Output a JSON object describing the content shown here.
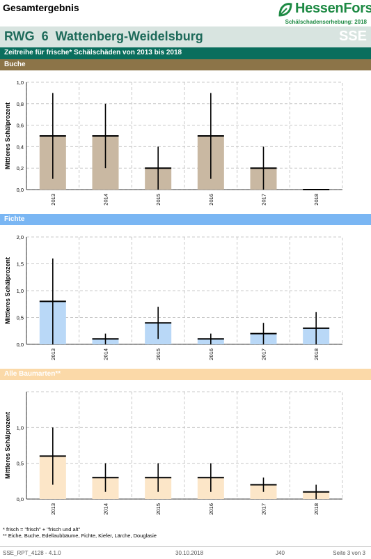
{
  "header": {
    "title": "Gesamtergebnis",
    "logo_text": "HessenForst",
    "logo_icon": "hessenforst-leaf-icon",
    "survey": "Schälschadenserhebung: 2018"
  },
  "region": {
    "title": "RWG  6  Wattenberg-Weidelsburg",
    "badge": "SSE"
  },
  "subtitle": "Zeitreihe für frische* Schälschäden von 2013 bis 2018",
  "colors": {
    "green": "#1e8a44",
    "teal_bar": "#0a6e5d",
    "buche_section": "#8c7448",
    "buche_bar": "#c9b8a2",
    "fichte_section": "#7ab6f3",
    "fichte_bar": "#b9d8f7",
    "alle_section": "#fbd9a8",
    "alle_bar": "#fce6c8"
  },
  "sections": [
    {
      "label": "Buche"
    },
    {
      "label": "Fichte"
    },
    {
      "label": "Alle Baumarten**"
    }
  ],
  "chart_data": [
    {
      "type": "bar",
      "ylabel": "Mittleres Schälprozent",
      "categories": [
        "2013",
        "2014",
        "2015",
        "2016",
        "2017",
        "2018"
      ],
      "values": [
        0.5,
        0.5,
        0.2,
        0.5,
        0.2,
        0.0
      ],
      "error_low": [
        0.1,
        0.2,
        0.0,
        0.1,
        0.0,
        0.0
      ],
      "error_high": [
        0.9,
        0.8,
        0.4,
        0.9,
        0.4,
        0.0
      ],
      "ylim": [
        0,
        1.0
      ],
      "yticks": [
        "0,0",
        "0,2",
        "0,4",
        "0,6",
        "0,8",
        "1,0"
      ],
      "ytick_values": [
        0,
        0.2,
        0.4,
        0.6,
        0.8,
        1.0
      ],
      "grid": true
    },
    {
      "type": "bar",
      "ylabel": "Mittleres Schälprozent",
      "categories": [
        "2013",
        "2014",
        "2015",
        "2016",
        "2017",
        "2018"
      ],
      "values": [
        0.8,
        0.1,
        0.4,
        0.1,
        0.2,
        0.3
      ],
      "error_low": [
        0.0,
        0.0,
        0.1,
        0.0,
        0.0,
        0.0
      ],
      "error_high": [
        1.6,
        0.2,
        0.7,
        0.2,
        0.4,
        0.6
      ],
      "ylim": [
        0,
        2.0
      ],
      "yticks": [
        "0,0",
        "0,5",
        "1,0",
        "1,5",
        "2,0"
      ],
      "ytick_values": [
        0,
        0.5,
        1.0,
        1.5,
        2.0
      ],
      "grid": true
    },
    {
      "type": "bar",
      "ylabel": "Mittleres Schälprozent",
      "categories": [
        "2013",
        "2014",
        "2015",
        "2016",
        "2017",
        "2018"
      ],
      "values": [
        0.6,
        0.3,
        0.3,
        0.3,
        0.2,
        0.1
      ],
      "error_low": [
        0.2,
        0.1,
        0.1,
        0.1,
        0.1,
        0.0
      ],
      "error_high": [
        1.0,
        0.5,
        0.5,
        0.5,
        0.3,
        0.2
      ],
      "ylim": [
        0,
        1.5
      ],
      "yticks": [
        "0,0",
        "0,5",
        "1,0"
      ],
      "ytick_values": [
        0,
        0.5,
        1.0
      ],
      "grid": true
    }
  ],
  "footnotes": [
    "* frisch = \"frisch\" + \"frisch und alt\"",
    "** Eiche, Buche, Edellaubbäume, Fichte, Kiefer, Lärche, Douglasie"
  ],
  "footer": {
    "report": "SSE_RPT_4128 - 4.1.0",
    "date": "30.10.2018",
    "code": "J40",
    "page": "Seite 3 von 3"
  }
}
